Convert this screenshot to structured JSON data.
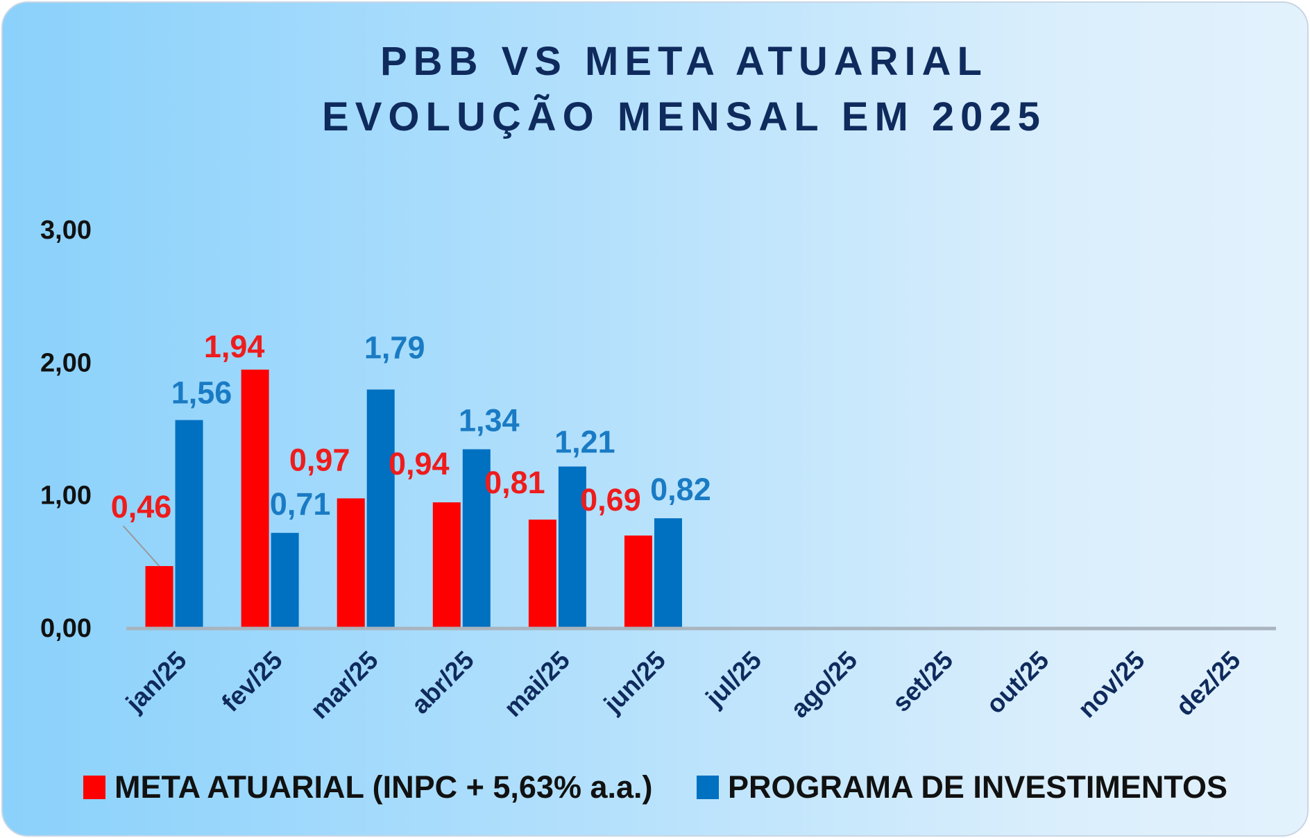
{
  "chart_data": {
    "type": "bar",
    "title_line1": "PBB VS META ATUARIAL",
    "title_line2": "EVOLUÇÃO MENSAL EM 2025",
    "categories": [
      "jan/25",
      "fev/25",
      "mar/25",
      "abr/25",
      "mai/25",
      "jun/25",
      "jul/25",
      "ago/25",
      "set/25",
      "out/25",
      "nov/25",
      "dez/25"
    ],
    "series": [
      {
        "name": "META ATUARIAL (INPC + 5,63% a.a.)",
        "color": "#ff0000",
        "label_color": "#ee1c1c",
        "values": [
          0.46,
          1.94,
          0.97,
          0.94,
          0.81,
          0.69,
          null,
          null,
          null,
          null,
          null,
          null
        ],
        "labels": [
          "0,46",
          "1,94",
          "0,97",
          "0,94",
          "0,81",
          "0,69"
        ]
      },
      {
        "name": "PROGRAMA DE INVESTIMENTOS",
        "color": "#0070c0",
        "label_color": "#1a7bc4",
        "values": [
          1.56,
          0.71,
          1.79,
          1.34,
          1.21,
          0.82,
          null,
          null,
          null,
          null,
          null,
          null
        ],
        "labels": [
          "1,56",
          "0,71",
          "1,79",
          "1,34",
          "1,21",
          "0,82"
        ]
      }
    ],
    "ylim": [
      0,
      3
    ],
    "yticks": [
      0,
      1,
      2,
      3
    ],
    "ytick_labels": [
      "0,00",
      "1,00",
      "2,00",
      "3,00"
    ],
    "legend_position": "bottom",
    "grid": false
  }
}
